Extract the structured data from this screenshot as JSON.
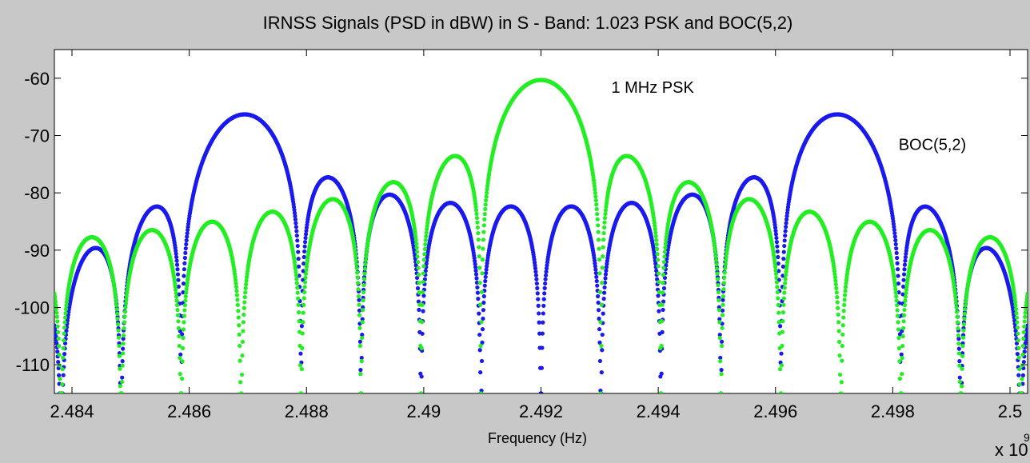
{
  "chart_data": {
    "type": "scatter",
    "title": "IRNSS Signals (PSD in dBW) in S - Band: 1.023 PSK and BOC(5,2)",
    "xlabel": "Frequency (Hz)",
    "ylabel": "",
    "x_multiplier_label": "x 10",
    "x_multiplier_exponent": "9",
    "xlim": [
      2.4837,
      2.5003
    ],
    "ylim": [
      -115,
      -55
    ],
    "x_ticks": [
      2.484,
      2.486,
      2.488,
      2.49,
      2.492,
      2.494,
      2.496,
      2.498,
      2.5
    ],
    "x_tick_labels": [
      "2.484",
      "2.486",
      "2.488",
      "2.49",
      "2.492",
      "2.494",
      "2.496",
      "2.498",
      "2.5"
    ],
    "y_ticks": [
      -110,
      -100,
      -90,
      -80,
      -70,
      -60
    ],
    "y_tick_labels": [
      "-110",
      "-100",
      "-90",
      "-80",
      "-70",
      "-60"
    ],
    "grid": false,
    "legend": "none",
    "colors": {
      "psk": "#22ee22",
      "boc": "#1a1aee",
      "background": "#c8c8c8",
      "plot_background": "#ffffff"
    },
    "series": [
      {
        "model": "psk",
        "center": 2.492,
        "chip_rate": 0.001023,
        "peak_db": -60.3,
        "floor_db": -115,
        "color": "#22ee22"
      },
      {
        "model": "boc",
        "center": 2.492,
        "chip_rate": 0.001023,
        "subcarrier_rate": 0.005115,
        "peak_db": -66.3,
        "floor_db": -115,
        "color": "#1a1aee"
      }
    ],
    "annotations": [
      {
        "text": "1 MHz PSK",
        "x": 2.4932,
        "y": -62.5
      },
      {
        "text": "BOC(5,2)",
        "x": 2.4981,
        "y": -72.5
      }
    ]
  }
}
